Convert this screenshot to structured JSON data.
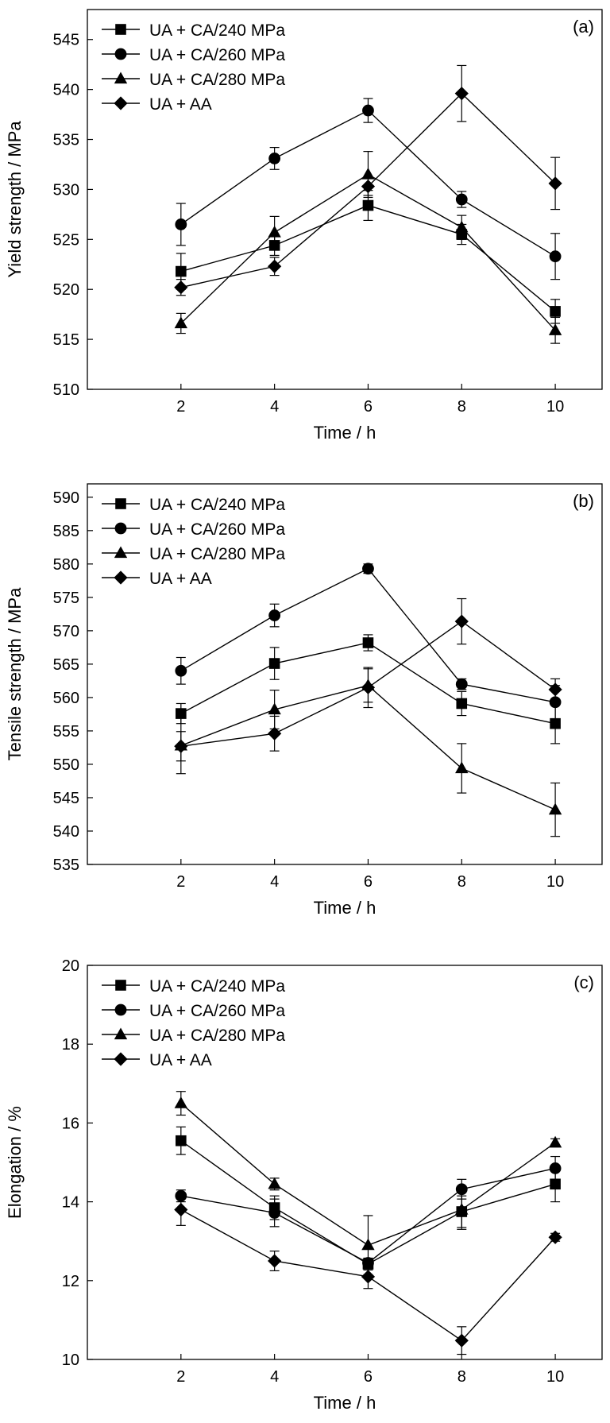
{
  "figure": {
    "legend_labels": [
      "UA + CA/240 MPa",
      "UA + CA/260 MPa",
      "UA + CA/280 MPa",
      "UA + AA"
    ]
  },
  "chart_data": [
    {
      "type": "line",
      "panel_label": "(a)",
      "xlabel": "Time / h",
      "ylabel": "Yield strength / MPa",
      "x": [
        2,
        4,
        6,
        8,
        10
      ],
      "xlim": [
        0,
        11
      ],
      "ylim": [
        510,
        548
      ],
      "xticks": [
        2,
        4,
        6,
        8,
        10
      ],
      "yticks": [
        510,
        515,
        520,
        525,
        530,
        535,
        540,
        545
      ],
      "grid": false,
      "legend_position": "top-left",
      "series": [
        {
          "name": "UA + CA/240 MPa",
          "marker": "square",
          "values": [
            521.8,
            524.4,
            528.4,
            525.5,
            517.8
          ],
          "errors": [
            1.8,
            1.0,
            1.5,
            1.0,
            1.2
          ]
        },
        {
          "name": "UA + CA/260 MPa",
          "marker": "circle",
          "values": [
            526.5,
            533.1,
            537.9,
            529.0,
            523.3
          ],
          "errors": [
            2.1,
            1.1,
            1.2,
            0.8,
            2.3
          ]
        },
        {
          "name": "UA + CA/280 MPa",
          "marker": "triangle",
          "values": [
            516.6,
            525.7,
            531.5,
            526.2,
            515.9
          ],
          "errors": [
            1.0,
            1.6,
            2.3,
            1.2,
            1.3
          ]
        },
        {
          "name": "UA + AA",
          "marker": "diamond",
          "values": [
            520.2,
            522.3,
            530.3,
            539.6,
            530.6
          ],
          "errors": [
            0.8,
            0.9,
            0.9,
            2.8,
            2.6
          ]
        }
      ]
    },
    {
      "type": "line",
      "panel_label": "(b)",
      "xlabel": "Time / h",
      "ylabel": "Tensile strength / MPa",
      "x": [
        2,
        4,
        6,
        8,
        10
      ],
      "xlim": [
        0,
        11
      ],
      "ylim": [
        535,
        592
      ],
      "xticks": [
        2,
        4,
        6,
        8,
        10
      ],
      "yticks": [
        535,
        540,
        545,
        550,
        555,
        560,
        565,
        570,
        575,
        580,
        585,
        590
      ],
      "grid": false,
      "legend_position": "top-left",
      "series": [
        {
          "name": "UA + CA/240 MPa",
          "marker": "square",
          "values": [
            557.6,
            565.1,
            568.2,
            559.1,
            556.1
          ],
          "errors": [
            1.5,
            2.4,
            1.2,
            1.8,
            3.0
          ]
        },
        {
          "name": "UA + CA/260 MPa",
          "marker": "circle",
          "values": [
            564.0,
            572.3,
            579.3,
            562.0,
            559.3
          ],
          "errors": [
            2.0,
            1.7,
            0.7,
            0.8,
            2.5
          ]
        },
        {
          "name": "UA + CA/280 MPa",
          "marker": "triangle",
          "values": [
            552.8,
            558.2,
            561.8,
            549.4,
            543.2
          ],
          "errors": [
            4.2,
            2.9,
            2.5,
            3.7,
            4.0
          ]
        },
        {
          "name": "UA + AA",
          "marker": "diamond",
          "values": [
            552.7,
            554.6,
            561.5,
            571.4,
            561.2
          ],
          "errors": [
            2.2,
            2.6,
            3.0,
            3.4,
            1.6
          ]
        }
      ]
    },
    {
      "type": "line",
      "panel_label": "(c)",
      "xlabel": "Time / h",
      "ylabel": "Elongation / %",
      "x": [
        2,
        4,
        6,
        8,
        10
      ],
      "xlim": [
        0,
        11
      ],
      "ylim": [
        10,
        20
      ],
      "xticks": [
        2,
        4,
        6,
        8,
        10
      ],
      "yticks": [
        10,
        12,
        14,
        16,
        18,
        20
      ],
      "grid": false,
      "legend_position": "top-left",
      "series": [
        {
          "name": "UA + CA/240 MPa",
          "marker": "square",
          "values": [
            15.55,
            13.85,
            12.42,
            13.75,
            14.45
          ],
          "errors": [
            0.35,
            0.3,
            0.15,
            0.4,
            0.45
          ]
        },
        {
          "name": "UA + CA/260 MPa",
          "marker": "circle",
          "values": [
            14.15,
            13.72,
            12.45,
            14.32,
            14.85
          ],
          "errors": [
            0.15,
            0.35,
            0.12,
            0.25,
            0.3
          ]
        },
        {
          "name": "UA + CA/280 MPa",
          "marker": "triangle",
          "values": [
            16.5,
            14.45,
            12.9,
            13.8,
            15.5
          ],
          "errors": [
            0.3,
            0.15,
            0.75,
            0.5,
            0.1
          ]
        },
        {
          "name": "UA + AA",
          "marker": "diamond",
          "values": [
            13.8,
            12.5,
            12.1,
            10.48,
            13.1
          ],
          "errors": [
            0.4,
            0.25,
            0.3,
            0.35,
            0.1
          ]
        }
      ]
    }
  ]
}
